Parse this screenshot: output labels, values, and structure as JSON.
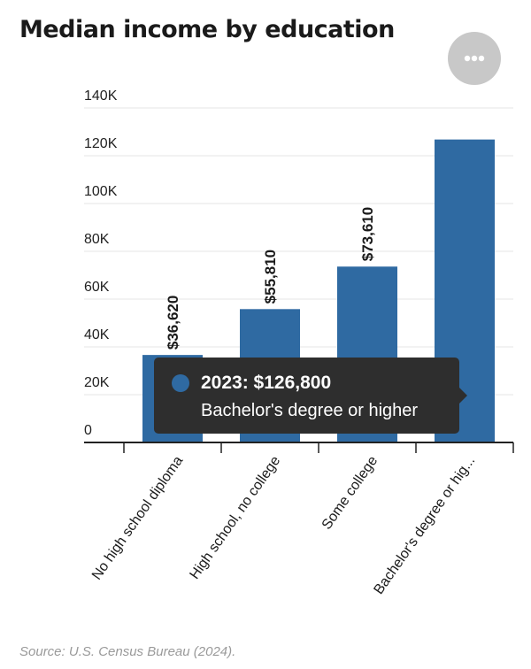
{
  "title": "Median income by education",
  "source": "Source: U.S. Census Bureau (2024).",
  "colors": {
    "bar": "#2f6aa2",
    "grid": "#e6e6e6",
    "axis": "#222222",
    "menu": "#c8c8c8",
    "tooltip_bg": "#2e2e2e"
  },
  "menu_icon": "more-horizontal-icon",
  "tooltip": {
    "line1": "2023: $126,800",
    "line2": "Bachelor's degree or higher"
  },
  "chart_data": {
    "type": "bar",
    "categories": [
      "No high school diploma",
      "High school, no college",
      "Some college",
      "Bachelor's degree or hig..."
    ],
    "values": [
      36620,
      55810,
      73610,
      126800
    ],
    "data_labels": [
      "$36,620",
      "$55,810",
      "$73,610",
      ""
    ],
    "y_ticks": [
      0,
      20000,
      40000,
      60000,
      80000,
      100000,
      120000,
      140000
    ],
    "y_tick_labels": [
      "0",
      "20K",
      "40K",
      "60K",
      "80K",
      "100K",
      "120K",
      "140K"
    ],
    "ylim": [
      0,
      140000
    ],
    "grid": true,
    "xlabel": "",
    "ylabel": ""
  }
}
